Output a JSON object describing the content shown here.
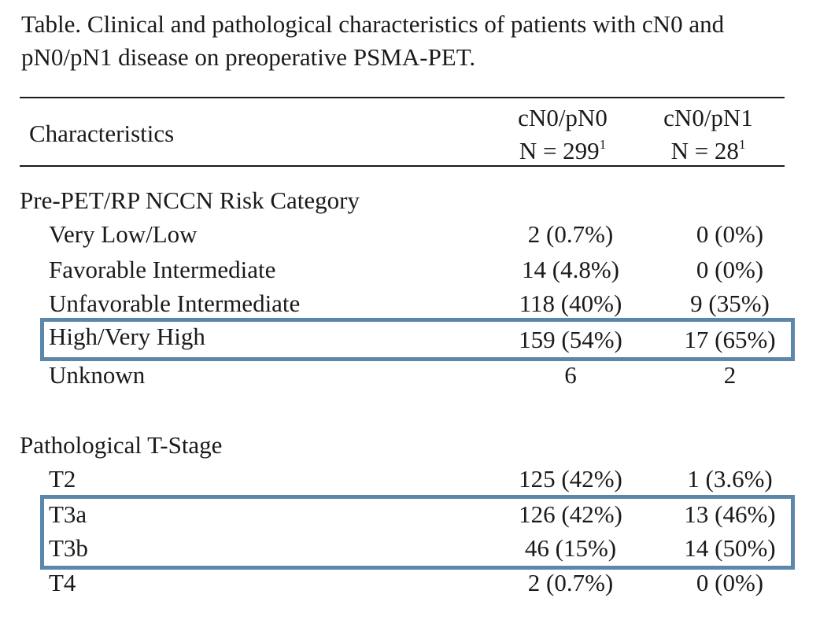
{
  "caption": {
    "line1": "Table. Clinical and pathological characteristics of patients with cN0 and",
    "line2": "pN0/pN1 disease on preoperative PSMA-PET."
  },
  "header": {
    "characteristics": "Characteristics",
    "col1_name": "cN0/pN0",
    "col1_n": "N = 299",
    "col1_sup": "1",
    "col2_name": "cN0/pN1",
    "col2_n": "N = 28",
    "col2_sup": "1"
  },
  "sections": [
    {
      "title": "Pre-PET/RP NCCN Risk Category",
      "rows": [
        {
          "label": "Very Low/Low",
          "pn0": "2 (0.7%)",
          "pn1": "0 (0%)"
        },
        {
          "label": "Favorable Intermediate",
          "pn0": "14 (4.8%)",
          "pn1": "0 (0%)"
        },
        {
          "label": "Unfavorable Intermediate",
          "pn0": "118 (40%)",
          "pn1": "9 (35%)"
        },
        {
          "label": "High/Very High",
          "pn0": "159 (54%)",
          "pn1": "17 (65%)"
        },
        {
          "label": "Unknown",
          "pn0": "6",
          "pn1": "2"
        }
      ]
    },
    {
      "title": "Pathological T-Stage",
      "rows": [
        {
          "label": "T2",
          "pn0": "125 (42%)",
          "pn1": "1 (3.6%)"
        },
        {
          "label": "T3a",
          "pn0": "126 (42%)",
          "pn1": "13 (46%)"
        },
        {
          "label": "T3b",
          "pn0": "46 (15%)",
          "pn1": "14 (50%)"
        },
        {
          "label": "T4",
          "pn0": "2 (0.7%)",
          "pn1": "0 (0%)"
        }
      ]
    }
  ],
  "highlight_color": "#5b87ab"
}
